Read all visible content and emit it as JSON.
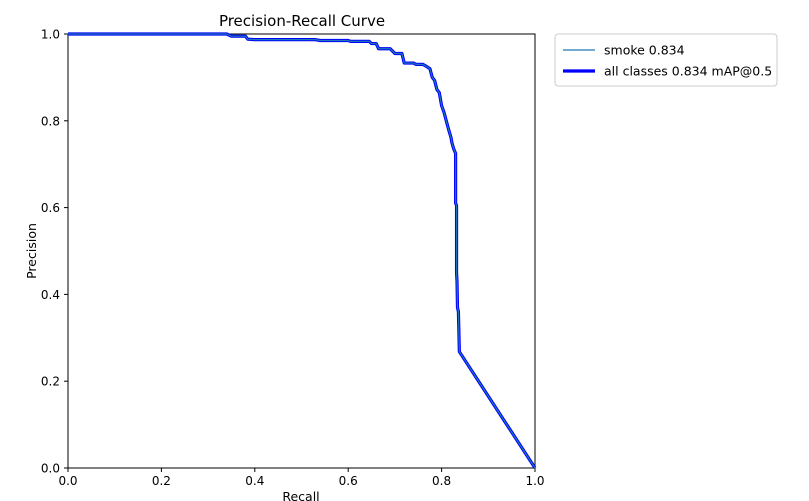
{
  "chart_data": {
    "type": "line",
    "title": "Precision-Recall Curve",
    "xlabel": "Recall",
    "ylabel": "Precision",
    "xlim": [
      0.0,
      1.0
    ],
    "ylim": [
      0.0,
      1.0
    ],
    "xticks": [
      "0.0",
      "0.2",
      "0.4",
      "0.6",
      "0.8",
      "1.0"
    ],
    "yticks": [
      "0.0",
      "0.2",
      "0.4",
      "0.6",
      "0.8",
      "1.0"
    ],
    "grid": false,
    "legend_position": "outside-upper-right",
    "series": [
      {
        "name": "smoke 0.834",
        "color": "#1f77b4",
        "line_style": "thin",
        "x": [
          0.0,
          0.34,
          0.35,
          0.38,
          0.385,
          0.4,
          0.53,
          0.54,
          0.6,
          0.605,
          0.645,
          0.65,
          0.66,
          0.665,
          0.69,
          0.7,
          0.715,
          0.72,
          0.74,
          0.745,
          0.76,
          0.768,
          0.775,
          0.78,
          0.785,
          0.79,
          0.795,
          0.8,
          0.805,
          0.81,
          0.815,
          0.82,
          0.822,
          0.826,
          0.828,
          0.83,
          0.83,
          0.832,
          0.832,
          0.833,
          0.834,
          0.836,
          0.838,
          1.0
        ],
        "y": [
          1.0,
          1.0,
          0.995,
          0.995,
          0.988,
          0.987,
          0.987,
          0.985,
          0.985,
          0.983,
          0.983,
          0.978,
          0.978,
          0.966,
          0.966,
          0.955,
          0.955,
          0.933,
          0.933,
          0.93,
          0.93,
          0.925,
          0.92,
          0.9,
          0.893,
          0.872,
          0.865,
          0.835,
          0.82,
          0.8,
          0.78,
          0.762,
          0.75,
          0.735,
          0.73,
          0.725,
          0.61,
          0.605,
          0.45,
          0.43,
          0.37,
          0.36,
          0.268,
          0.0
        ]
      },
      {
        "name": "all classes 0.834 mAP@0.5",
        "color": "#0000ff",
        "line_style": "thick",
        "x": [
          0.0,
          0.34,
          0.35,
          0.38,
          0.385,
          0.4,
          0.53,
          0.54,
          0.6,
          0.605,
          0.645,
          0.65,
          0.66,
          0.665,
          0.69,
          0.7,
          0.715,
          0.72,
          0.74,
          0.745,
          0.76,
          0.768,
          0.775,
          0.78,
          0.785,
          0.79,
          0.795,
          0.8,
          0.805,
          0.81,
          0.815,
          0.82,
          0.822,
          0.826,
          0.828,
          0.83,
          0.83,
          0.832,
          0.832,
          0.833,
          0.834,
          0.836,
          0.838,
          1.0
        ],
        "y": [
          1.0,
          1.0,
          0.995,
          0.995,
          0.988,
          0.987,
          0.987,
          0.985,
          0.985,
          0.983,
          0.983,
          0.978,
          0.978,
          0.966,
          0.966,
          0.955,
          0.955,
          0.933,
          0.933,
          0.93,
          0.93,
          0.925,
          0.92,
          0.9,
          0.893,
          0.872,
          0.865,
          0.835,
          0.82,
          0.8,
          0.78,
          0.762,
          0.75,
          0.735,
          0.73,
          0.725,
          0.61,
          0.605,
          0.45,
          0.43,
          0.37,
          0.36,
          0.268,
          0.0
        ]
      }
    ]
  }
}
